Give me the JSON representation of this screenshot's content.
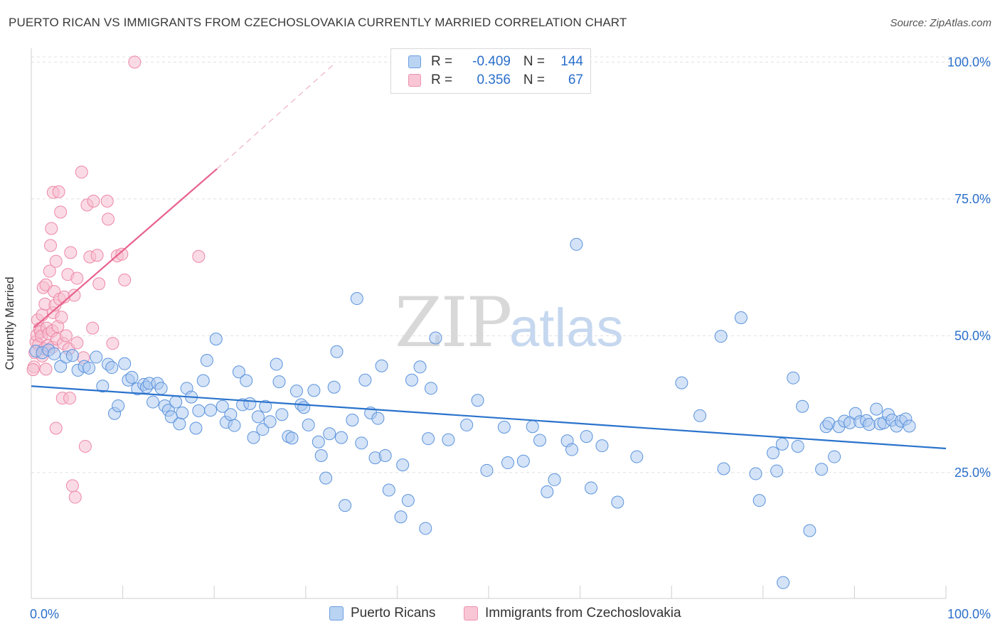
{
  "header": {
    "title": "PUERTO RICAN VS IMMIGRANTS FROM CZECHOSLOVAKIA CURRENTLY MARRIED CORRELATION CHART",
    "source": "Source: ZipAtlas.com"
  },
  "watermark": {
    "zip": "ZIP",
    "atlas": "atlas"
  },
  "legend": {
    "rows": [
      {
        "r_label": "R =",
        "r_value": "-0.409",
        "n_label": "N =",
        "n_value": "144",
        "color": "#7aabe8"
      },
      {
        "r_label": "R =",
        "r_value": "0.356",
        "n_label": "N =",
        "n_value": "67",
        "color": "#f0a0b8"
      }
    ]
  },
  "bottom_legend": {
    "series_a": "Puerto Ricans",
    "series_b": "Immigrants from Czechoslovakia"
  },
  "colors": {
    "blue_fill": "#a9c8f0",
    "blue_stroke": "#5b93dc",
    "blue_line": "#2a73cc",
    "pink_fill": "#f6bdd0",
    "pink_stroke": "#ee88a8",
    "pink_line": "#e8628e",
    "grid": "#e0e0e0",
    "tick_label": "#2a6fca"
  },
  "chart_data": {
    "type": "scatter",
    "ylabel": "Currently Married",
    "x_tick_labels": [
      "0.0%",
      "100.0%"
    ],
    "y_tick_labels": [
      "25.0%",
      "50.0%",
      "75.0%",
      "100.0%"
    ],
    "xlim": [
      0,
      100
    ],
    "ylim": [
      2,
      102
    ],
    "grid": true,
    "series": [
      {
        "name": "Puerto Ricans",
        "trend": [
          [
            0,
            40.8
          ],
          [
            100,
            29.4
          ]
        ],
        "points": [
          [
            0.5,
            47.2
          ],
          [
            1.2,
            46.9
          ],
          [
            1.9,
            47.4
          ],
          [
            2.5,
            46.7
          ],
          [
            3.2,
            44.4
          ],
          [
            3.8,
            46.1
          ],
          [
            4.5,
            46.4
          ],
          [
            5.1,
            43.7
          ],
          [
            5.8,
            44.4
          ],
          [
            6.3,
            44.1
          ],
          [
            7.1,
            46.1
          ],
          [
            7.8,
            40.8
          ],
          [
            8.4,
            44.8
          ],
          [
            8.8,
            44.2
          ],
          [
            9.1,
            35.8
          ],
          [
            9.5,
            37.2
          ],
          [
            10.2,
            44.9
          ],
          [
            10.6,
            41.9
          ],
          [
            11.0,
            42.4
          ],
          [
            11.6,
            40.3
          ],
          [
            12.3,
            41.1
          ],
          [
            12.6,
            40.6
          ],
          [
            12.9,
            41.3
          ],
          [
            13.3,
            37.9
          ],
          [
            13.8,
            41.3
          ],
          [
            14.2,
            40.4
          ],
          [
            14.6,
            37.2
          ],
          [
            15.0,
            36.4
          ],
          [
            15.3,
            35.2
          ],
          [
            15.8,
            37.9
          ],
          [
            16.2,
            33.9
          ],
          [
            16.5,
            35.9
          ],
          [
            17.0,
            40.4
          ],
          [
            17.5,
            38.8
          ],
          [
            18.0,
            33.1
          ],
          [
            18.3,
            36.3
          ],
          [
            18.8,
            41.8
          ],
          [
            19.2,
            45.5
          ],
          [
            19.6,
            36.4
          ],
          [
            20.2,
            49.4
          ],
          [
            20.9,
            37.1
          ],
          [
            21.3,
            34.2
          ],
          [
            21.8,
            35.6
          ],
          [
            22.2,
            33.6
          ],
          [
            22.7,
            43.4
          ],
          [
            23.1,
            37.4
          ],
          [
            23.5,
            41.8
          ],
          [
            23.9,
            37.6
          ],
          [
            24.3,
            31.4
          ],
          [
            24.8,
            35.2
          ],
          [
            25.3,
            32.9
          ],
          [
            25.6,
            37.1
          ],
          [
            26.1,
            34.3
          ],
          [
            26.8,
            44.8
          ],
          [
            27.1,
            41.6
          ],
          [
            27.4,
            35.6
          ],
          [
            28.1,
            31.6
          ],
          [
            28.5,
            31.3
          ],
          [
            29.0,
            39.9
          ],
          [
            29.5,
            37.4
          ],
          [
            29.8,
            36.9
          ],
          [
            30.3,
            33.7
          ],
          [
            30.9,
            40.0
          ],
          [
            31.4,
            30.6
          ],
          [
            31.7,
            28.1
          ],
          [
            32.2,
            24.0
          ],
          [
            32.6,
            32.1
          ],
          [
            33.1,
            40.6
          ],
          [
            33.4,
            47.1
          ],
          [
            33.9,
            31.4
          ],
          [
            34.3,
            19.0
          ],
          [
            35.1,
            34.6
          ],
          [
            35.6,
            56.8
          ],
          [
            36.1,
            30.4
          ],
          [
            36.5,
            41.9
          ],
          [
            37.1,
            35.9
          ],
          [
            37.6,
            27.7
          ],
          [
            37.9,
            34.9
          ],
          [
            38.3,
            44.5
          ],
          [
            38.7,
            28.1
          ],
          [
            39.1,
            21.8
          ],
          [
            40.4,
            16.9
          ],
          [
            40.6,
            26.4
          ],
          [
            41.2,
            19.9
          ],
          [
            41.6,
            41.9
          ],
          [
            42.5,
            44.3
          ],
          [
            43.1,
            14.8
          ],
          [
            43.4,
            31.2
          ],
          [
            43.7,
            40.4
          ],
          [
            44.2,
            49.6
          ],
          [
            45.6,
            31.0
          ],
          [
            47.6,
            33.7
          ],
          [
            48.8,
            38.2
          ],
          [
            49.8,
            25.4
          ],
          [
            51.7,
            33.3
          ],
          [
            52.1,
            26.8
          ],
          [
            59.6,
            66.7
          ],
          [
            53.8,
            27.1
          ],
          [
            55.6,
            30.9
          ],
          [
            54.8,
            33.4
          ],
          [
            56.4,
            21.5
          ],
          [
            57.2,
            23.7
          ],
          [
            58.6,
            30.8
          ],
          [
            59.1,
            29.2
          ],
          [
            60.7,
            31.6
          ],
          [
            61.2,
            22.2
          ],
          [
            62.4,
            29.9
          ],
          [
            64.1,
            19.6
          ],
          [
            66.2,
            27.9
          ],
          [
            71.1,
            41.4
          ],
          [
            73.1,
            35.4
          ],
          [
            75.7,
            25.7
          ],
          [
            75.4,
            49.9
          ],
          [
            77.6,
            53.3
          ],
          [
            79.2,
            24.8
          ],
          [
            81.1,
            28.6
          ],
          [
            81.5,
            25.3
          ],
          [
            82.1,
            30.2
          ],
          [
            83.3,
            42.3
          ],
          [
            83.8,
            29.8
          ],
          [
            84.3,
            37.1
          ],
          [
            85.1,
            14.4
          ],
          [
            86.4,
            25.6
          ],
          [
            86.9,
            33.4
          ],
          [
            87.2,
            34.0
          ],
          [
            87.8,
            27.9
          ],
          [
            88.3,
            33.4
          ],
          [
            88.9,
            34.4
          ],
          [
            89.5,
            34.1
          ],
          [
            90.1,
            35.8
          ],
          [
            90.6,
            34.3
          ],
          [
            91.3,
            34.5
          ],
          [
            91.6,
            33.8
          ],
          [
            92.4,
            36.6
          ],
          [
            92.8,
            33.9
          ],
          [
            93.2,
            34.1
          ],
          [
            93.7,
            35.6
          ],
          [
            94.1,
            34.6
          ],
          [
            94.6,
            33.5
          ],
          [
            95.1,
            34.4
          ],
          [
            95.6,
            34.8
          ],
          [
            96.0,
            33.5
          ],
          [
            82.2,
            4.9
          ],
          [
            79.6,
            19.9
          ]
        ]
      },
      {
        "name": "Immigrants from Czechoslovakia",
        "trend": [
          [
            0.3,
            51.5
          ],
          [
            20.3,
            80.5
          ]
        ],
        "trend_dashed": [
          [
            20.3,
            80.5
          ],
          [
            33.0,
            99.5
          ]
        ],
        "points": [
          [
            0.3,
            44.3
          ],
          [
            0.4,
            46.9
          ],
          [
            0.5,
            48.9
          ],
          [
            0.6,
            50.1
          ],
          [
            0.7,
            52.9
          ],
          [
            0.8,
            48.4
          ],
          [
            0.9,
            51.3
          ],
          [
            1.0,
            50.7
          ],
          [
            1.1,
            49.9
          ],
          [
            1.2,
            53.8
          ],
          [
            1.2,
            46.3
          ],
          [
            1.3,
            58.8
          ],
          [
            1.4,
            47.6
          ],
          [
            1.5,
            55.8
          ],
          [
            1.6,
            59.3
          ],
          [
            1.6,
            43.9
          ],
          [
            1.7,
            51.4
          ],
          [
            1.8,
            48.2
          ],
          [
            1.9,
            50.4
          ],
          [
            2.0,
            61.8
          ],
          [
            2.1,
            66.5
          ],
          [
            2.2,
            69.6
          ],
          [
            2.3,
            47.9
          ],
          [
            2.3,
            50.9
          ],
          [
            2.4,
            76.2
          ],
          [
            2.4,
            54.2
          ],
          [
            2.5,
            58.1
          ],
          [
            2.6,
            55.6
          ],
          [
            2.7,
            63.6
          ],
          [
            2.7,
            33.1
          ],
          [
            2.8,
            49.4
          ],
          [
            2.9,
            51.7
          ],
          [
            3.0,
            76.3
          ],
          [
            3.1,
            56.7
          ],
          [
            3.2,
            72.6
          ],
          [
            3.3,
            53.4
          ],
          [
            3.4,
            38.6
          ],
          [
            3.5,
            48.6
          ],
          [
            3.6,
            57.1
          ],
          [
            3.8,
            50.0
          ],
          [
            4.0,
            61.2
          ],
          [
            4.1,
            47.6
          ],
          [
            4.2,
            38.6
          ],
          [
            4.3,
            65.2
          ],
          [
            4.5,
            22.6
          ],
          [
            4.7,
            57.4
          ],
          [
            4.8,
            20.5
          ],
          [
            5.0,
            60.5
          ],
          [
            5.0,
            48.7
          ],
          [
            5.5,
            79.9
          ],
          [
            5.7,
            46.0
          ],
          [
            5.9,
            29.8
          ],
          [
            6.1,
            73.9
          ],
          [
            6.4,
            64.4
          ],
          [
            6.7,
            51.4
          ],
          [
            6.8,
            74.6
          ],
          [
            7.2,
            64.7
          ],
          [
            7.4,
            59.5
          ],
          [
            8.3,
            74.6
          ],
          [
            8.4,
            71.3
          ],
          [
            8.9,
            48.6
          ],
          [
            9.4,
            64.6
          ],
          [
            9.9,
            64.9
          ],
          [
            10.2,
            60.2
          ],
          [
            11.3,
            100.0
          ],
          [
            18.3,
            64.5
          ],
          [
            0.2,
            43.8
          ]
        ]
      }
    ]
  }
}
